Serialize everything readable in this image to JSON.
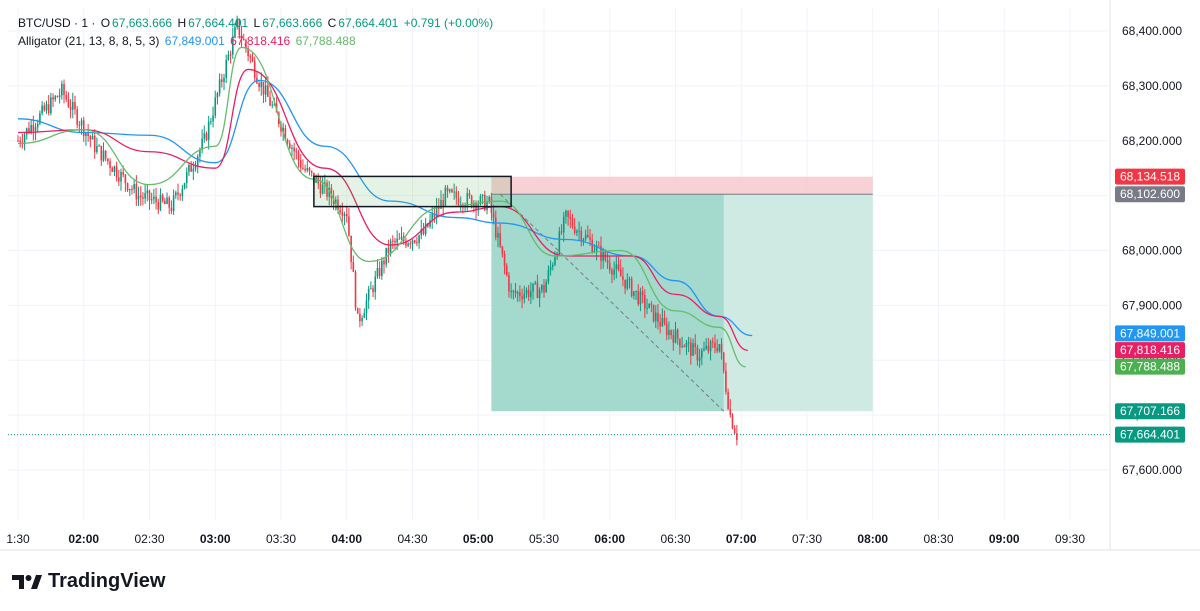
{
  "legend": {
    "symbol": "BTC/USD · 1 ·",
    "o_label": "O",
    "o_value": "67,663.666",
    "h_label": "H",
    "h_value": "67,664.401",
    "l_label": "L",
    "l_value": "67,663.666",
    "c_label": "C",
    "c_value": "67,664.401",
    "change": "+0.791 (+0.00%)",
    "indicator": "Alligator (21, 13, 8, 8, 5, 3)",
    "jaw_value": "67,849.001",
    "teeth_value": "67,818.416",
    "lips_value": "67,788.488"
  },
  "brand": {
    "name": "TradingView"
  },
  "colors": {
    "jaw": "#2196f3",
    "teeth": "#e91e63",
    "lips": "#66bb6a",
    "candle_up": "#089981",
    "candle_down": "#f23645",
    "stop_zone": "#f7c9cc",
    "target_zone": "#cfeae3",
    "target_zone_active": "#9fd8cb",
    "price_current": "#089981"
  },
  "chart_data": {
    "type": "candlestick",
    "symbol": "BTC/USD",
    "interval": "1",
    "x_ticks": [
      "1:30",
      "02:00",
      "02:30",
      "03:00",
      "03:30",
      "04:00",
      "04:30",
      "05:00",
      "05:30",
      "06:00",
      "06:30",
      "07:00",
      "07:30",
      "08:00",
      "08:30",
      "09:00",
      "09:30"
    ],
    "y_ticks": [
      "67,600.000",
      "67,700.000",
      "67,800.000",
      "67,900.000",
      "68,000.000",
      "68,100.000",
      "68,200.000",
      "68,300.000",
      "68,400.000"
    ],
    "y_range": [
      67550,
      68450
    ],
    "time_range": [
      "01:30",
      "09:30"
    ],
    "price_labels": [
      {
        "value": 68134.518,
        "text": "68,134.518",
        "color": "#f23645"
      },
      {
        "value": 68102.6,
        "text": "68,102.600",
        "color": "#787b86"
      },
      {
        "value": 67849.001,
        "text": "67,849.001",
        "color": "#2196f3"
      },
      {
        "value": 67818.416,
        "text": "67,818.416",
        "color": "#e91e63"
      },
      {
        "value": 67788.488,
        "text": "67,788.488",
        "color": "#4caf50"
      },
      {
        "value": 67707.166,
        "text": "67,707.166",
        "color": "#089981"
      },
      {
        "value": 67664.401,
        "text": "67,664.401",
        "color": "#089981"
      }
    ],
    "alligator_keypoints": {
      "jaw": [
        [
          "01:30",
          68240
        ],
        [
          "02:00",
          68215
        ],
        [
          "02:30",
          68210
        ],
        [
          "03:00",
          68160
        ],
        [
          "03:20",
          68310
        ],
        [
          "03:50",
          68190
        ],
        [
          "04:20",
          68090
        ],
        [
          "04:50",
          68060
        ],
        [
          "05:10",
          68050
        ],
        [
          "05:40",
          68020
        ],
        [
          "06:10",
          67990
        ],
        [
          "06:30",
          67945
        ],
        [
          "06:50",
          67880
        ],
        [
          "07:05",
          67845
        ]
      ],
      "teeth": [
        [
          "01:30",
          68215
        ],
        [
          "02:00",
          68220
        ],
        [
          "02:30",
          68180
        ],
        [
          "03:00",
          68150
        ],
        [
          "03:15",
          68330
        ],
        [
          "03:50",
          68150
        ],
        [
          "04:20",
          68010
        ],
        [
          "04:50",
          68070
        ],
        [
          "05:10",
          68080
        ],
        [
          "05:40",
          67990
        ],
        [
          "06:10",
          67990
        ],
        [
          "06:30",
          67920
        ],
        [
          "06:50",
          67880
        ],
        [
          "07:03",
          67818
        ]
      ],
      "lips": [
        [
          "01:30",
          68195
        ],
        [
          "02:00",
          68220
        ],
        [
          "02:30",
          68120
        ],
        [
          "03:00",
          68190
        ],
        [
          "03:12",
          68370
        ],
        [
          "03:45",
          68130
        ],
        [
          "04:10",
          67980
        ],
        [
          "04:45",
          68080
        ],
        [
          "05:10",
          68090
        ],
        [
          "05:35",
          67990
        ],
        [
          "06:05",
          68000
        ],
        [
          "06:30",
          67890
        ],
        [
          "06:50",
          67860
        ],
        [
          "07:02",
          67788
        ]
      ]
    },
    "candle_keypoints": [
      [
        "01:30",
        68200
      ],
      [
        "01:50",
        68290
      ],
      [
        "02:05",
        68190
      ],
      [
        "02:25",
        68100
      ],
      [
        "02:40",
        68080
      ],
      [
        "02:55",
        68200
      ],
      [
        "03:10",
        68410
      ],
      [
        "03:20",
        68310
      ],
      [
        "03:40",
        68150
      ],
      [
        "04:00",
        68070
      ],
      [
        "04:05",
        67870
      ],
      [
        "04:20",
        68010
      ],
      [
        "04:35",
        68030
      ],
      [
        "04:45",
        68100
      ],
      [
        "05:05",
        68085
      ],
      [
        "05:15",
        67920
      ],
      [
        "05:30",
        67930
      ],
      [
        "05:40",
        68060
      ],
      [
        "05:50",
        68020
      ],
      [
        "06:10",
        67930
      ],
      [
        "06:25",
        67860
      ],
      [
        "06:40",
        67810
      ],
      [
        "06:50",
        67830
      ],
      [
        "06:55",
        67700
      ],
      [
        "06:58",
        67664
      ]
    ],
    "position": {
      "type": "short",
      "entry": 68102.6,
      "stop": 68134.518,
      "target": 67707.166,
      "start": "05:06",
      "end": "08:00",
      "active_until": "06:52"
    },
    "box": {
      "price_low": 68080,
      "price_high": 68135,
      "start": "03:45",
      "end": "05:15"
    },
    "grid": true
  }
}
